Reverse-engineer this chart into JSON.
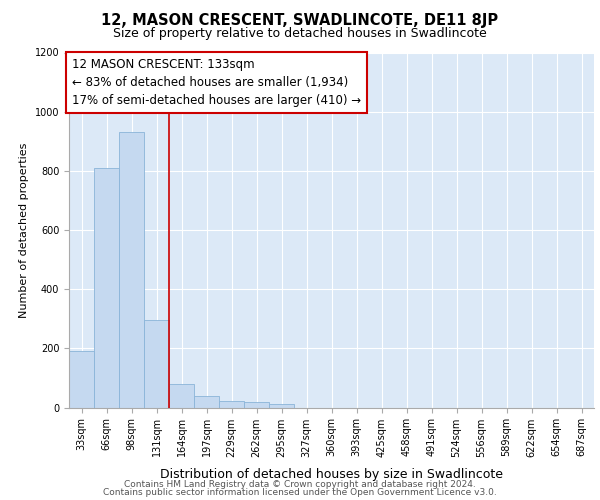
{
  "title": "12, MASON CRESCENT, SWADLINCOTE, DE11 8JP",
  "subtitle": "Size of property relative to detached houses in Swadlincote",
  "xlabel": "Distribution of detached houses by size in Swadlincote",
  "ylabel": "Number of detached properties",
  "bar_color": "#c5d9f0",
  "bar_edge_color": "#8ab4d8",
  "plot_bg_color": "#dce9f7",
  "categories": [
    "33sqm",
    "66sqm",
    "98sqm",
    "131sqm",
    "164sqm",
    "197sqm",
    "229sqm",
    "262sqm",
    "295sqm",
    "327sqm",
    "360sqm",
    "393sqm",
    "425sqm",
    "458sqm",
    "491sqm",
    "524sqm",
    "556sqm",
    "589sqm",
    "622sqm",
    "654sqm",
    "687sqm"
  ],
  "values": [
    190,
    810,
    930,
    295,
    80,
    38,
    22,
    18,
    12,
    0,
    0,
    0,
    0,
    0,
    0,
    0,
    0,
    0,
    0,
    0,
    0
  ],
  "ylim": [
    0,
    1200
  ],
  "yticks": [
    0,
    200,
    400,
    600,
    800,
    1000,
    1200
  ],
  "property_line_x": 3.5,
  "property_line_color": "#cc0000",
  "annotation_line1": "12 MASON CRESCENT: 133sqm",
  "annotation_line2": "← 83% of detached houses are smaller (1,934)",
  "annotation_line3": "17% of semi-detached houses are larger (410) →",
  "annotation_box_color": "#cc0000",
  "footer_line1": "Contains HM Land Registry data © Crown copyright and database right 2024.",
  "footer_line2": "Contains public sector information licensed under the Open Government Licence v3.0.",
  "title_fontsize": 10.5,
  "subtitle_fontsize": 9,
  "xlabel_fontsize": 9,
  "ylabel_fontsize": 8,
  "tick_fontsize": 7,
  "annotation_fontsize": 8.5,
  "footer_fontsize": 6.5
}
